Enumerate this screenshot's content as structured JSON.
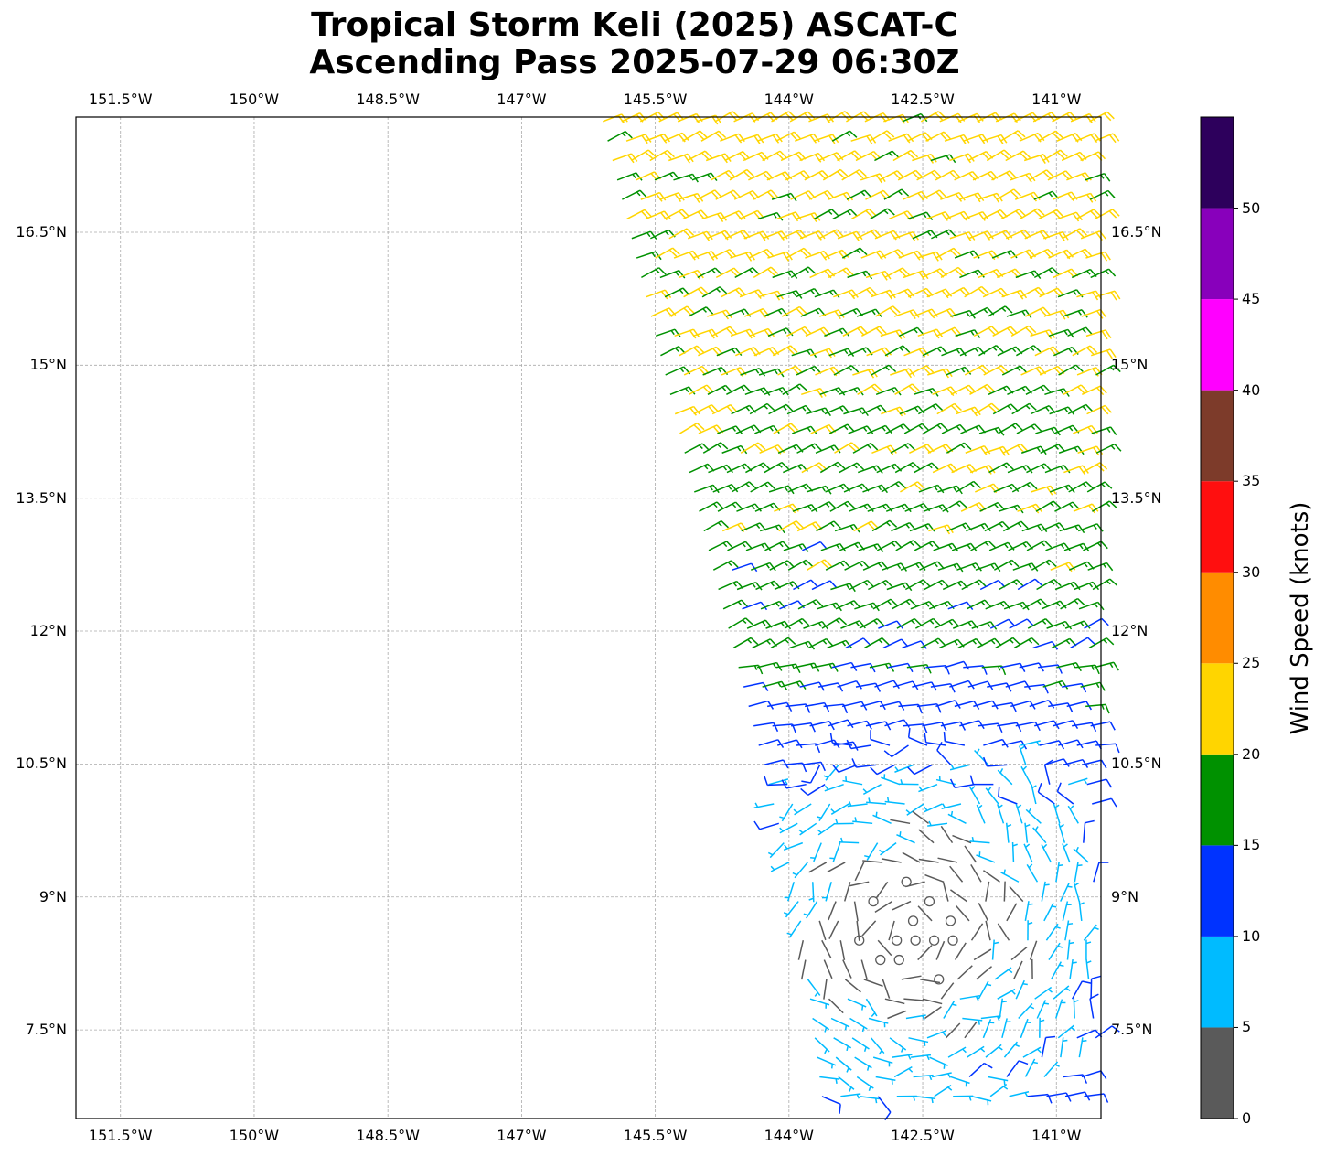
{
  "title_line1": "Tropical Storm Keli (2025) ASCAT-C",
  "title_line2": "Ascending Pass 2025-07-29 06:30Z",
  "map": {
    "lon_range": [
      -152.0,
      -140.5
    ],
    "lat_range": [
      6.5,
      17.8
    ],
    "gridlines": true,
    "lon_ticks": [
      {
        "value": -151.5,
        "label": "151.5°W"
      },
      {
        "value": -150.0,
        "label": "150°W"
      },
      {
        "value": -148.5,
        "label": "148.5°W"
      },
      {
        "value": -147.0,
        "label": "147°W"
      },
      {
        "value": -145.5,
        "label": "145.5°W"
      },
      {
        "value": -144.0,
        "label": "144°W"
      },
      {
        "value": -142.5,
        "label": "142.5°W"
      },
      {
        "value": -141.0,
        "label": "141°W"
      }
    ],
    "lat_ticks": [
      {
        "value": 16.5,
        "label": "16.5°N"
      },
      {
        "value": 15.0,
        "label": "15°N"
      },
      {
        "value": 13.5,
        "label": "13.5°N"
      },
      {
        "value": 12.0,
        "label": "12°N"
      },
      {
        "value": 10.5,
        "label": "10.5°N"
      },
      {
        "value": 9.0,
        "label": "9°N"
      },
      {
        "value": 7.5,
        "label": "7.5°N"
      }
    ]
  },
  "colorbar": {
    "title": "Wind Speed (knots)",
    "tick_labels": [
      "0",
      "5",
      "10",
      "15",
      "20",
      "25",
      "30",
      "35",
      "40",
      "45",
      "50"
    ],
    "bins": [
      {
        "min": 0,
        "max": 5,
        "color": "#5a5a5a"
      },
      {
        "min": 5,
        "max": 10,
        "color": "#00bbff"
      },
      {
        "min": 10,
        "max": 15,
        "color": "#0033ff"
      },
      {
        "min": 15,
        "max": 20,
        "color": "#009100"
      },
      {
        "min": 20,
        "max": 25,
        "color": "#ffd500"
      },
      {
        "min": 25,
        "max": 30,
        "color": "#ff8c00"
      },
      {
        "min": 30,
        "max": 35,
        "color": "#ff0f0f"
      },
      {
        "min": 35,
        "max": 40,
        "color": "#7d3b2a"
      },
      {
        "min": 40,
        "max": 45,
        "color": "#ff00ff"
      },
      {
        "min": 45,
        "max": 50,
        "color": "#8800bb"
      },
      {
        "min": 50,
        "max": 55,
        "color": "#2d005c"
      }
    ]
  },
  "wind_field": {
    "swath_left_edge": [
      [
        -146.3,
        17.8
      ],
      [
        -145.0,
        12.5
      ],
      [
        -144.1,
        9.0
      ],
      [
        -143.8,
        6.5
      ]
    ],
    "center_approx": [
      -142.6,
      8.6
    ]
  }
}
